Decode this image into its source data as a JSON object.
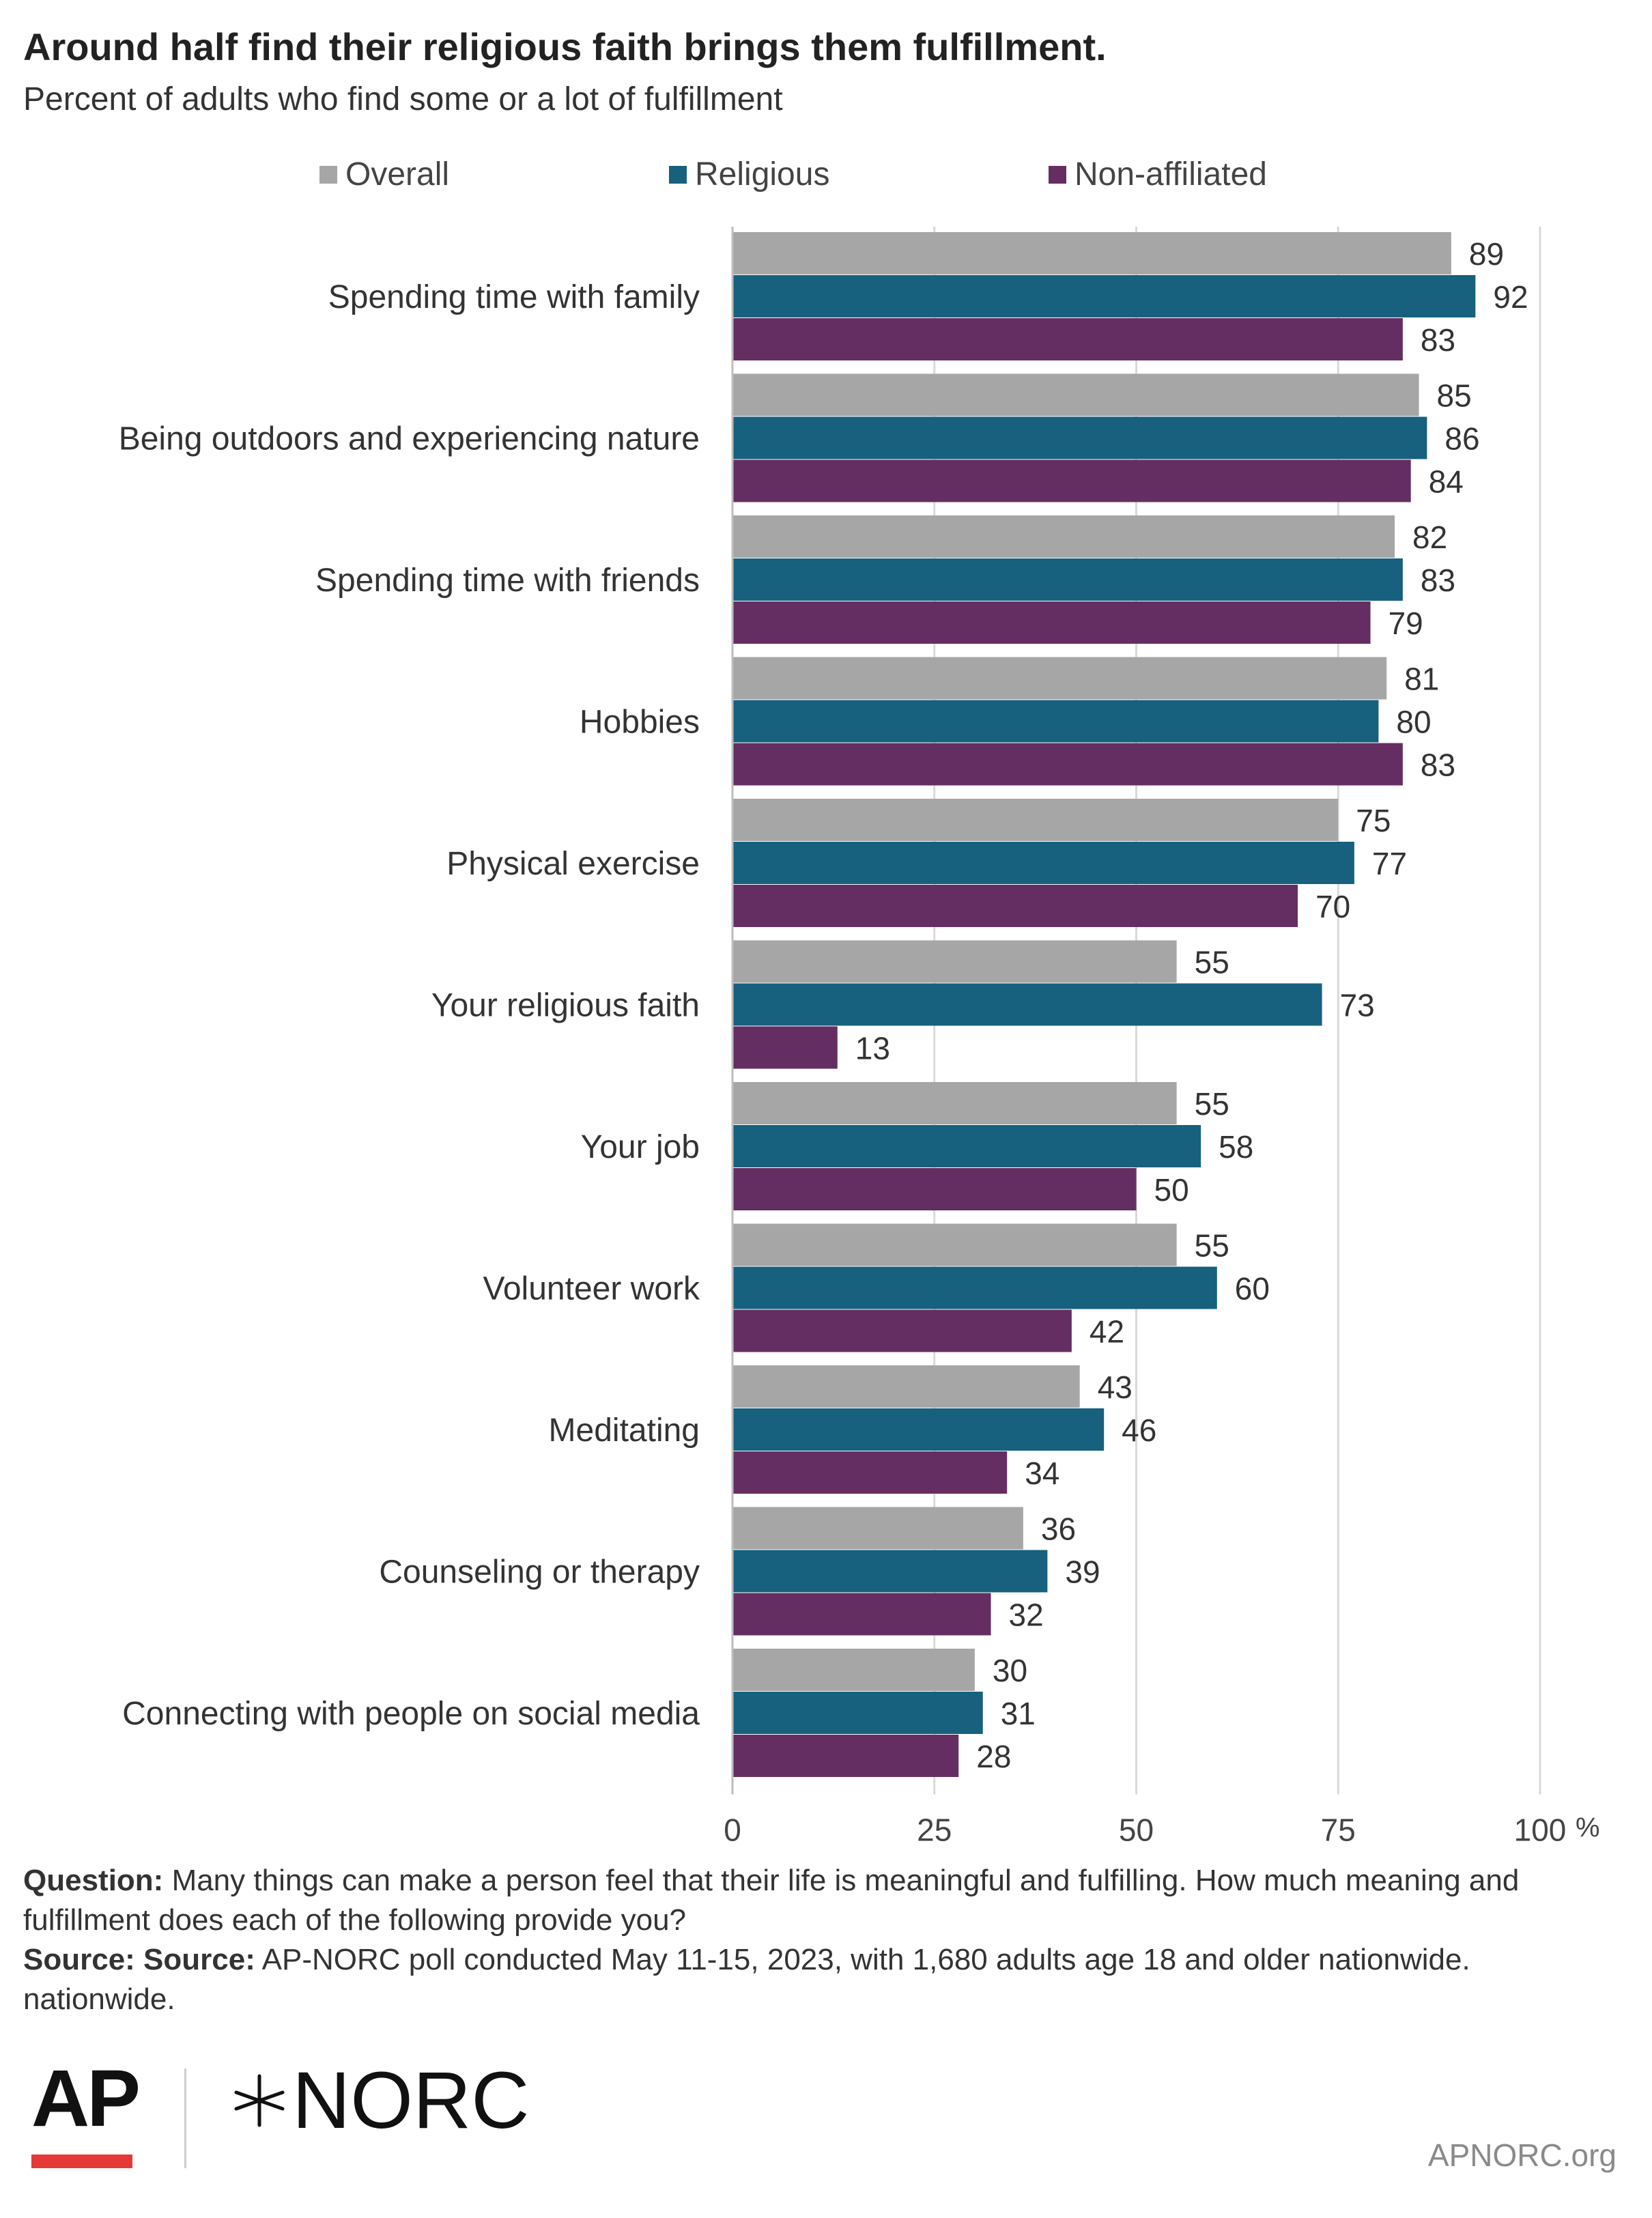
{
  "chart_data": {
    "type": "bar",
    "orientation": "horizontal",
    "title": "Around half find their religious faith brings them fulfillment.",
    "subtitle": "Percent of adults who find some or a lot of fulfillment",
    "categories": [
      "Spending time with family",
      "Being outdoors and experiencing nature",
      "Spending time with friends",
      "Hobbies",
      "Physical exercise",
      "Your religious faith",
      "Your job",
      "Volunteer work",
      "Meditating",
      "Counseling or therapy",
      "Connecting with people on social media"
    ],
    "series": [
      {
        "name": "Overall",
        "color": "#a6a6a6",
        "values": [
          89,
          85,
          82,
          81,
          75,
          55,
          55,
          55,
          43,
          36,
          30
        ]
      },
      {
        "name": "Religious",
        "color": "#17607e",
        "values": [
          92,
          86,
          83,
          80,
          77,
          73,
          58,
          60,
          46,
          39,
          31
        ]
      },
      {
        "name": "Non-affiliated",
        "color": "#652e62",
        "values": [
          83,
          84,
          79,
          83,
          70,
          13,
          50,
          42,
          34,
          32,
          28
        ]
      }
    ],
    "xlim": [
      0,
      100
    ],
    "xticks": [
      "0",
      "25",
      "50",
      "75",
      "100"
    ],
    "x_unit": "%",
    "grid": true,
    "legend_position": "top"
  },
  "notes": {
    "question_label": "Question:",
    "question_text": "Many things can make a person feel that their life is meaningful and fulfilling. How much meaning and fulfillment does each of the following provide you?",
    "source_label": "Source: Source:",
    "source_text": "AP-NORC poll conducted May 11-15, 2023, with 1,680 adults age 18 and older nationwide. nationwide."
  },
  "footer": {
    "ap_logo": "AP",
    "norc_logo": "NORC",
    "star_icon": "norc-star-icon",
    "url": "APNORC.org"
  }
}
